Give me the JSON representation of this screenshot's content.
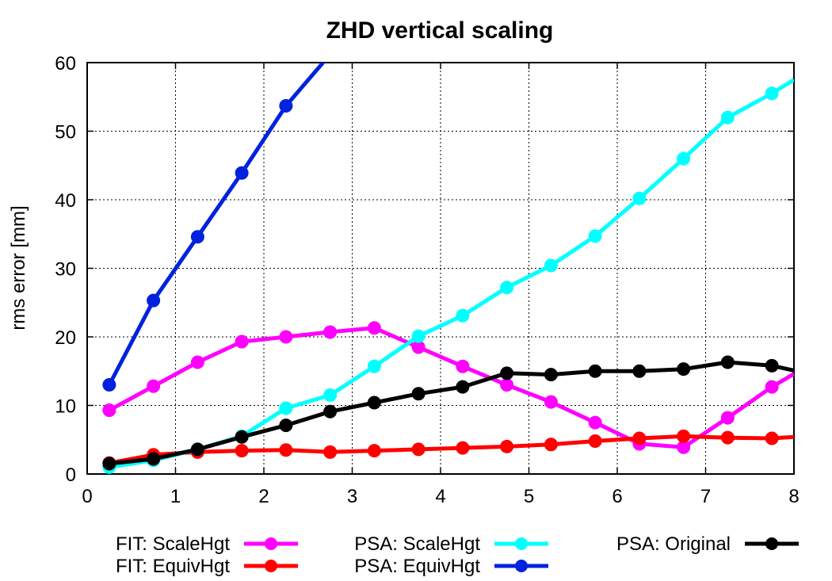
{
  "chart_data": {
    "type": "line",
    "title": "ZHD vertical scaling",
    "xlabel": "",
    "ylabel": "rms error [mm]",
    "xlim": [
      0,
      8
    ],
    "ylim": [
      0,
      60
    ],
    "xticks": [
      "0",
      "1",
      "2",
      "3",
      "4",
      "5",
      "6",
      "7",
      "8"
    ],
    "yticks": [
      "0",
      "10",
      "20",
      "30",
      "40",
      "50",
      "60"
    ],
    "grid": true,
    "legend_position": "bottom",
    "series": [
      {
        "name": "FIT: ScaleHgt",
        "color": "#ff00ff",
        "x": [
          0.25,
          0.75,
          1.25,
          1.75,
          2.25,
          2.75,
          3.25,
          3.75,
          4.25,
          4.75,
          5.25,
          5.75,
          6.25,
          6.75,
          7.25,
          7.75,
          8.0
        ],
        "y": [
          9.3,
          12.8,
          16.3,
          19.3,
          20.0,
          20.7,
          21.3,
          18.5,
          15.7,
          13.0,
          10.5,
          7.5,
          4.4,
          3.9,
          8.2,
          12.7,
          14.6
        ]
      },
      {
        "name": "FIT: EquivHgt",
        "color": "#ff0000",
        "x": [
          0.25,
          0.75,
          1.25,
          1.75,
          2.25,
          2.75,
          3.25,
          3.75,
          4.25,
          4.75,
          5.25,
          5.75,
          6.25,
          6.75,
          7.25,
          7.75,
          8.0
        ],
        "y": [
          1.6,
          2.8,
          3.2,
          3.4,
          3.5,
          3.2,
          3.4,
          3.6,
          3.8,
          4.0,
          4.3,
          4.8,
          5.2,
          5.5,
          5.3,
          5.2,
          5.4
        ]
      },
      {
        "name": "PSA: ScaleHgt",
        "color": "#00ffff",
        "x": [
          0.25,
          0.75,
          1.25,
          1.75,
          2.25,
          2.75,
          3.25,
          3.75,
          4.25,
          4.75,
          5.25,
          5.75,
          6.25,
          6.75,
          7.25,
          7.75,
          8.0
        ],
        "y": [
          1.0,
          2.0,
          3.6,
          5.5,
          9.6,
          11.5,
          15.7,
          20.1,
          23.1,
          27.2,
          30.4,
          34.7,
          40.2,
          46.0,
          52.0,
          55.5,
          57.5
        ]
      },
      {
        "name": "PSA: EquivHgt",
        "color": "#0022dd",
        "x": [
          0.25,
          0.75,
          1.25,
          1.75,
          2.25,
          2.67
        ],
        "y": [
          13.0,
          25.3,
          34.6,
          43.9,
          53.7,
          60.0
        ]
      },
      {
        "name": "PSA: Original",
        "color": "#000000",
        "x": [
          0.25,
          0.75,
          1.25,
          1.75,
          2.25,
          2.75,
          3.25,
          3.75,
          4.25,
          4.75,
          5.25,
          5.75,
          6.25,
          6.75,
          7.25,
          7.75,
          8.0
        ],
        "y": [
          1.5,
          2.2,
          3.6,
          5.4,
          7.1,
          9.1,
          10.4,
          11.7,
          12.7,
          14.7,
          14.5,
          15.0,
          15.0,
          15.3,
          16.3,
          15.8,
          15.1
        ]
      }
    ]
  }
}
